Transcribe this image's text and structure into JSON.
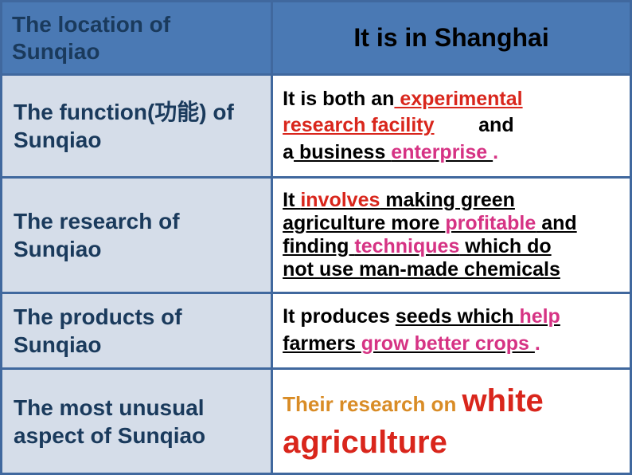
{
  "header": {
    "left": "The location of Sunqiao",
    "right": "It is in Shanghai"
  },
  "rows": {
    "function": {
      "left": "The function(功能) of Sunqiao",
      "t1": "It is both an",
      "f1": " experimental ",
      "f2": " research facility",
      "t2": "and",
      "t3": "a",
      "f3a": " business ",
      "f3b": "enterprise ",
      "dot": "."
    },
    "research": {
      "left": "The research of Sunqiao",
      "l1a": "It ",
      "l1b": "involves",
      "l1c": " making green",
      "l2a": "agriculture more ",
      "l2b": "profitable",
      "l2c": " and",
      "l3a": "finding ",
      "l3b": "techniques",
      "l3c": " which do",
      "l4": "not use man-made chemicals"
    },
    "products": {
      "left": "The products of Sunqiao",
      "t1": "It produces ",
      "f1a": "seeds which ",
      "f1b": "help",
      "f2a": " farmers ",
      "f2b": "grow better crops ",
      "dot": "."
    },
    "unusual": {
      "left": "The most unusual aspect of Sunqiao",
      "t1": "Their research on ",
      "t2": "white agriculture"
    }
  },
  "colors": {
    "header_bg": "#4a79b4",
    "alt_bg": "#d5dde9",
    "border": "#40689e",
    "navy": "#1a3a5c",
    "red": "#d9261c",
    "magenta": "#d63384",
    "orange": "#d98c26"
  }
}
